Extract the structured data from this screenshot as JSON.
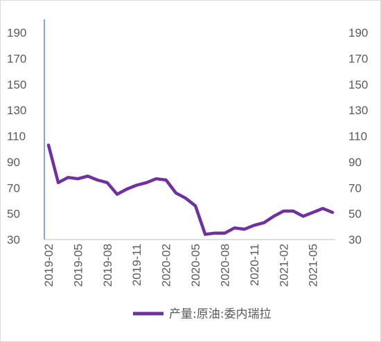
{
  "chart_data": {
    "type": "line",
    "x": [
      "2019-02",
      "2019-03",
      "2019-04",
      "2019-05",
      "2019-06",
      "2019-07",
      "2019-08",
      "2019-09",
      "2019-10",
      "2019-11",
      "2019-12",
      "2020-01",
      "2020-02",
      "2020-03",
      "2020-04",
      "2020-05",
      "2020-06",
      "2020-07",
      "2020-08",
      "2020-09",
      "2020-10",
      "2020-11",
      "2020-12",
      "2021-01",
      "2021-02",
      "2021-03",
      "2021-04",
      "2021-05",
      "2021-06",
      "2021-07"
    ],
    "x_tick_labels": [
      "2019-02",
      "2019-05",
      "2019-08",
      "2019-11",
      "2020-02",
      "2020-05",
      "2020-08",
      "2020-11",
      "2021-02",
      "2021-05"
    ],
    "series": [
      {
        "name": "产量:原油:委内瑞拉",
        "color": "#7030a0",
        "values": [
          103,
          74,
          78,
          77,
          79,
          76,
          74,
          65,
          69,
          72,
          74,
          77,
          76,
          66,
          62,
          56,
          34,
          35,
          35,
          39,
          38,
          41,
          43,
          48,
          52,
          52,
          48,
          51,
          54,
          51
        ]
      }
    ],
    "y_ticks": [
      30,
      50,
      70,
      90,
      110,
      130,
      150,
      170,
      190
    ],
    "ylim": [
      30,
      190
    ],
    "y_axis_left_color": "#4472c4",
    "grid": false,
    "legend": "bottom",
    "title": "",
    "xlabel": "",
    "ylabel": ""
  }
}
